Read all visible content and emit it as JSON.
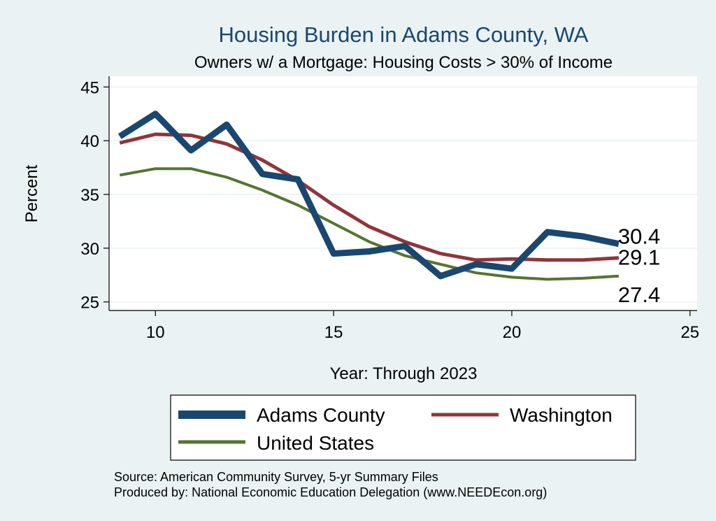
{
  "colors": {
    "adams": "#1a476f",
    "washington": "#90353b",
    "us": "#55752f",
    "background": "#eaf2f3",
    "plot_bg": "#ffffff",
    "grid": "#eaf2f3"
  },
  "chart_data": {
    "type": "line",
    "title": "Housing Burden in Adams County, WA",
    "subtitle": "Owners w/ a Mortgage: Housing Costs > 30% of Income",
    "xlabel": "Year: Through 2023",
    "ylabel": "Percent",
    "xlim": [
      8.7,
      25.2
    ],
    "ylim": [
      24.2,
      46
    ],
    "xticks": [
      10,
      15,
      20,
      25
    ],
    "yticks": [
      25,
      30,
      35,
      40,
      45
    ],
    "grid": true,
    "legend_position": "bottom",
    "x": [
      9,
      10,
      11,
      12,
      13,
      14,
      15,
      16,
      17,
      18,
      19,
      20,
      21,
      22,
      23
    ],
    "series": [
      {
        "name": "Adams County",
        "key": "adams",
        "values": [
          40.4,
          42.5,
          39.1,
          41.5,
          36.9,
          36.4,
          29.5,
          29.7,
          30.2,
          27.4,
          28.5,
          28.1,
          31.5,
          31.1,
          30.4
        ],
        "end_label": "30.4"
      },
      {
        "name": "Washington",
        "key": "washington",
        "values": [
          39.8,
          40.6,
          40.5,
          39.7,
          38.2,
          36.3,
          34.0,
          32.0,
          30.6,
          29.5,
          28.9,
          29.0,
          28.9,
          28.9,
          29.1
        ],
        "end_label": "29.1"
      },
      {
        "name": "United States",
        "key": "us",
        "values": [
          36.8,
          37.4,
          37.4,
          36.6,
          35.4,
          34.0,
          32.3,
          30.6,
          29.3,
          28.5,
          27.7,
          27.3,
          27.1,
          27.2,
          27.4
        ],
        "end_label": "27.4"
      }
    ]
  },
  "footer": {
    "source": "Source: American Community Survey, 5-yr Summary Files",
    "produced_by": "Produced by: National Economic Education Delegation (www.NEEDEcon.org)"
  }
}
